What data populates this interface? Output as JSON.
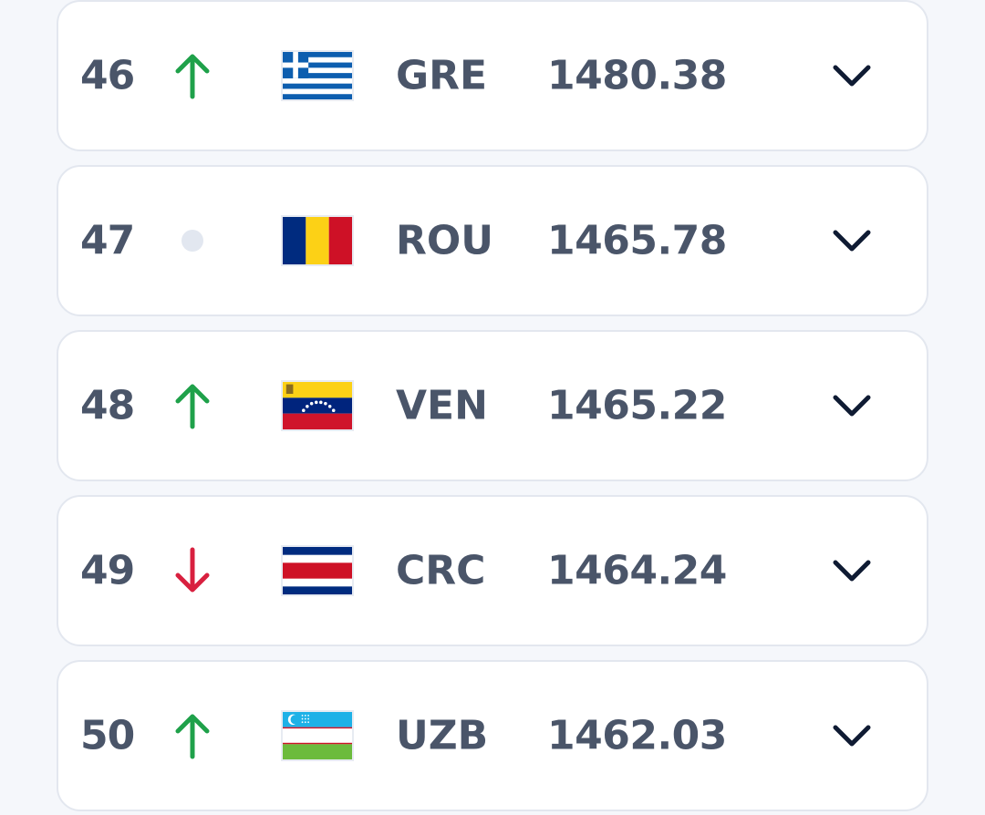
{
  "colors": {
    "up": "#1fa14a",
    "down": "#d8203f",
    "neutral": "#e2e7f0",
    "text": "#4a5569",
    "chevron": "#0f1b33"
  },
  "rows": [
    {
      "rank": "46",
      "trend": "up",
      "flag": "greece-flag-icon",
      "code": "GRE",
      "points": "1480.38"
    },
    {
      "rank": "47",
      "trend": "same",
      "flag": "romania-flag-icon",
      "code": "ROU",
      "points": "1465.78"
    },
    {
      "rank": "48",
      "trend": "up",
      "flag": "venezuela-flag-icon",
      "code": "VEN",
      "points": "1465.22"
    },
    {
      "rank": "49",
      "trend": "down",
      "flag": "costa-rica-flag-icon",
      "code": "CRC",
      "points": "1464.24"
    },
    {
      "rank": "50",
      "trend": "up",
      "flag": "uzbekistan-flag-icon",
      "code": "UZB",
      "points": "1462.03"
    }
  ]
}
